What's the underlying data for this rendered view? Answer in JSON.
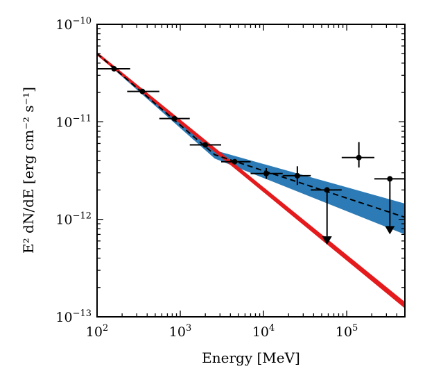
{
  "chart_data": {
    "type": "scatter",
    "title": "",
    "xlabel": "Energy [MeV]",
    "ylabel": "E² dN/dE  [erg cm⁻² s⁻¹]",
    "xscale": "log",
    "yscale": "log",
    "xlim": [
      100,
      500000
    ],
    "ylim": [
      1e-13,
      1e-10
    ],
    "grid": false,
    "x_ticks": [
      {
        "value": 100,
        "base": "10",
        "exp": "2"
      },
      {
        "value": 1000,
        "base": "10",
        "exp": "3"
      },
      {
        "value": 10000,
        "base": "10",
        "exp": "4"
      },
      {
        "value": 100000,
        "base": "10",
        "exp": "5"
      }
    ],
    "y_ticks": [
      {
        "value": 1e-13,
        "base": "10",
        "exp": "−13"
      },
      {
        "value": 1e-12,
        "base": "10",
        "exp": "−12"
      },
      {
        "value": 1e-11,
        "base": "10",
        "exp": "−11"
      },
      {
        "value": 1e-10,
        "base": "10",
        "exp": "−10"
      }
    ],
    "data_points": [
      {
        "x": 160,
        "y": 3.5e-11,
        "xerr": [
          100,
          250
        ],
        "yerr": null
      },
      {
        "x": 350,
        "y": 2.05e-11,
        "xerr": [
          230,
          560
        ],
        "yerr": null
      },
      {
        "x": 850,
        "y": 1.08e-11,
        "xerr": [
          560,
          1300
        ],
        "yerr": null
      },
      {
        "x": 2000,
        "y": 5.8e-12,
        "xerr": [
          1300,
          3100
        ],
        "yerr": null
      },
      {
        "x": 4500,
        "y": 3.9e-12,
        "xerr": [
          3100,
          7000
        ],
        "yerr": null
      },
      {
        "x": 10800,
        "y": 2.95e-12,
        "xerr": [
          7000,
          17000
        ],
        "yerr": [
          2.6e-12,
          3.35e-12
        ]
      },
      {
        "x": 25500,
        "y": 2.8e-12,
        "xerr": [
          17000,
          37000
        ],
        "yerr": [
          2.25e-12,
          3.5e-12
        ]
      },
      {
        "x": 140000,
        "y": 4.3e-12,
        "xerr": [
          87000,
          215000
        ],
        "yerr": [
          3.4e-12,
          6.2e-12
        ]
      }
    ],
    "upper_limits": [
      {
        "x": 58000,
        "y": 2e-12,
        "xerr": [
          37000,
          87000
        ],
        "arrow_to": 5.5e-13
      },
      {
        "x": 330000,
        "y": 2.6e-12,
        "xerr": [
          215000,
          500000
        ],
        "arrow_to": 7e-13
      }
    ],
    "power_law_band": {
      "color": "#e41a1c",
      "x": [
        100,
        500000
      ],
      "lower": [
        4.8e-11,
        1.22e-13
      ],
      "upper": [
        5.2e-11,
        1.42e-13
      ]
    },
    "broken_fit_band": {
      "color": "#2c7bb6",
      "x": [
        100,
        2600,
        500000
      ],
      "lower": [
        4.9e-11,
        4.2e-12,
        7e-13
      ],
      "upper": [
        5.1e-11,
        5.1e-12,
        1.45e-12
      ]
    },
    "broken_fit_line": {
      "style": "dashed",
      "color": "#000000",
      "x": [
        100,
        2600,
        500000
      ],
      "y": [
        5e-11,
        4.6e-12,
        1.05e-12
      ]
    }
  }
}
